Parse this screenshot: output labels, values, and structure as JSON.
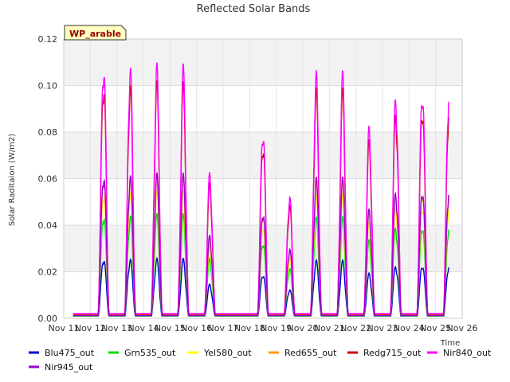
{
  "chart_data": {
    "type": "line",
    "title": "Reflected Solar Bands",
    "xlabel": "Time",
    "ylabel": "Solar Raditaion (W/m2)",
    "annotation": "WP_arable",
    "xlim": [
      11,
      26
    ],
    "ylim": [
      0,
      0.12
    ],
    "x_ticks": [
      11,
      12,
      13,
      14,
      15,
      16,
      17,
      18,
      19,
      20,
      21,
      22,
      23,
      24,
      25,
      26
    ],
    "x_tick_labels": [
      "Nov 11",
      "Nov 12",
      "Nov 13",
      "Nov 14",
      "Nov 15",
      "Nov 16",
      "Nov 17",
      "Nov 18",
      "Nov 19",
      "Nov 20",
      "Nov 21",
      "Nov 22",
      "Nov 23",
      "Nov 24",
      "Nov 25",
      "Nov 26"
    ],
    "y_ticks": [
      0,
      0.02,
      0.04,
      0.06,
      0.08,
      0.1,
      0.12
    ],
    "y_tick_labels": [
      "0.00",
      "0.02",
      "0.04",
      "0.06",
      "0.08",
      "0.10",
      "0.12"
    ],
    "grid": true,
    "band_colors": [
      "#f2f2f2",
      "#ffffff"
    ],
    "legend_position": "bottom",
    "day_peaks": [
      {
        "day": 12,
        "nir840": 0.116
      },
      {
        "day": 13,
        "nir840": 0.113
      },
      {
        "day": 14,
        "nir840": 0.111
      },
      {
        "day": 15,
        "nir840": 0.11
      },
      {
        "day": 16,
        "nir840": 0.064
      },
      {
        "day": 18,
        "nir840": 0.086
      },
      {
        "day": 19,
        "nir840": 0.055
      },
      {
        "day": 20,
        "nir840": 0.108
      },
      {
        "day": 21,
        "nir840": 0.107
      },
      {
        "day": 22,
        "nir840": 0.084
      },
      {
        "day": 23,
        "nir840": 0.1
      },
      {
        "day": 24,
        "nir840": 0.104
      },
      {
        "day": 25,
        "nir840": 0.104
      }
    ],
    "series": [
      {
        "name": "Blu475_out",
        "color": "#0000cc",
        "scale": 0.235,
        "night": 0.001
      },
      {
        "name": "Grn535_out",
        "color": "#00dd00",
        "scale": 0.41,
        "night": 0.001
      },
      {
        "name": "Yel580_out",
        "color": "#ffff00",
        "scale": 0.5,
        "night": 0.0015
      },
      {
        "name": "Red655_out",
        "color": "#ff9900",
        "scale": 0.56,
        "night": 0.0015
      },
      {
        "name": "Redg715_out",
        "color": "#cc0000",
        "scale": 0.93,
        "night": 0.0018
      },
      {
        "name": "Nir840_out",
        "color": "#ff00ff",
        "scale": 1.0,
        "night": 0.002
      },
      {
        "name": "Nir945_out",
        "color": "#9900cc",
        "scale": 0.57,
        "night": 0.0012
      }
    ]
  }
}
